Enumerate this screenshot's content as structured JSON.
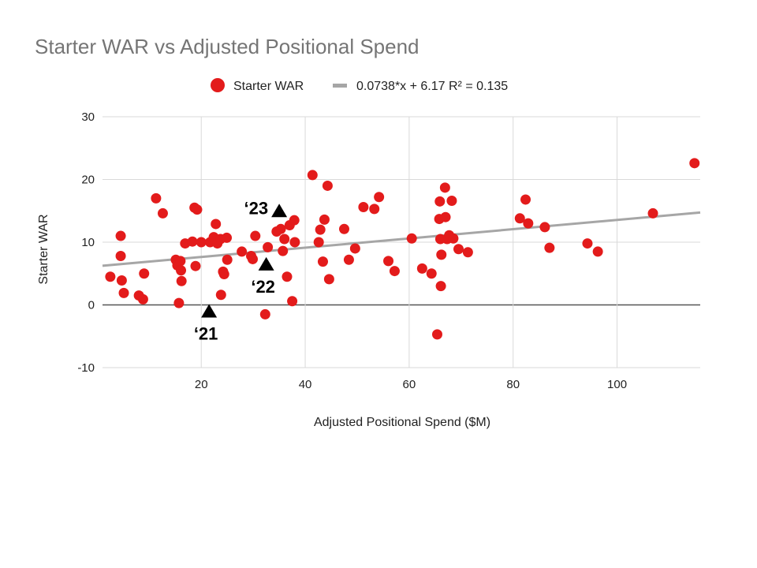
{
  "chart_data": {
    "type": "scatter",
    "title": "Starter WAR vs Adjusted Positional Spend",
    "xlabel": "Adjusted Positional Spend ($M)",
    "ylabel": "Starter WAR",
    "xlim": [
      1,
      116
    ],
    "ylim": [
      -10,
      30
    ],
    "xticks": [
      20,
      40,
      60,
      80,
      100
    ],
    "yticks": [
      -10,
      0,
      10,
      20,
      30
    ],
    "grid": true,
    "legend_position": "top",
    "series": [
      {
        "name": "Starter WAR",
        "color": "#e31b1b",
        "marker": "circle",
        "points": [
          [
            2.5,
            4.5
          ],
          [
            4.5,
            11
          ],
          [
            4.5,
            7.8
          ],
          [
            4.7,
            3.9
          ],
          [
            5.1,
            1.9
          ],
          [
            8,
            1.5
          ],
          [
            8.8,
            0.9
          ],
          [
            9,
            5
          ],
          [
            11.3,
            17
          ],
          [
            12.6,
            14.6
          ],
          [
            15.1,
            7.2
          ],
          [
            15.4,
            6.3
          ],
          [
            15.7,
            0.3
          ],
          [
            16,
            7
          ],
          [
            16.1,
            5.5
          ],
          [
            16.2,
            3.8
          ],
          [
            16.9,
            9.8
          ],
          [
            18.3,
            10.1
          ],
          [
            18.7,
            15.5
          ],
          [
            18.9,
            6.2
          ],
          [
            19.2,
            15.2
          ],
          [
            20,
            10
          ],
          [
            21.7,
            10
          ],
          [
            22.4,
            10.8
          ],
          [
            22.8,
            12.9
          ],
          [
            23.1,
            9.8
          ],
          [
            23.7,
            10.5
          ],
          [
            23.8,
            1.6
          ],
          [
            24.2,
            5.3
          ],
          [
            24.4,
            4.9
          ],
          [
            24.9,
            10.7
          ],
          [
            25,
            7.2
          ],
          [
            27.8,
            8.5
          ],
          [
            29.6,
            7.8
          ],
          [
            29.9,
            7.3
          ],
          [
            30.4,
            11
          ],
          [
            32.3,
            -1.5
          ],
          [
            32.8,
            9.2
          ],
          [
            34.5,
            11.7
          ],
          [
            35.3,
            12.1
          ],
          [
            35.7,
            8.6
          ],
          [
            36,
            10.5
          ],
          [
            36.5,
            4.5
          ],
          [
            37,
            12.7
          ],
          [
            37.5,
            0.6
          ],
          [
            37.9,
            13.5
          ],
          [
            38,
            10
          ],
          [
            41.4,
            20.7
          ],
          [
            42.6,
            10
          ],
          [
            42.9,
            12
          ],
          [
            43.4,
            6.9
          ],
          [
            43.7,
            13.6
          ],
          [
            44.3,
            19
          ],
          [
            44.6,
            4.1
          ],
          [
            47.5,
            12.1
          ],
          [
            48.4,
            7.2
          ],
          [
            49.6,
            9
          ],
          [
            51.2,
            15.6
          ],
          [
            53.3,
            15.3
          ],
          [
            54.2,
            17.2
          ],
          [
            56,
            7
          ],
          [
            57.2,
            5.4
          ],
          [
            60.5,
            10.6
          ],
          [
            62.5,
            5.8
          ],
          [
            64.3,
            5
          ],
          [
            65.4,
            -4.7
          ],
          [
            65.8,
            13.7
          ],
          [
            65.9,
            16.5
          ],
          [
            66,
            10.5
          ],
          [
            66.1,
            3
          ],
          [
            66.2,
            8
          ],
          [
            66.9,
            18.7
          ],
          [
            67,
            14
          ],
          [
            67.3,
            10.5
          ],
          [
            67.7,
            11.1
          ],
          [
            68.2,
            16.6
          ],
          [
            68.5,
            10.6
          ],
          [
            69.5,
            8.9
          ],
          [
            71.3,
            8.4
          ],
          [
            81.3,
            13.8
          ],
          [
            82.4,
            16.8
          ],
          [
            82.9,
            13
          ],
          [
            86.1,
            12.4
          ],
          [
            87,
            9.1
          ],
          [
            94.3,
            9.8
          ],
          [
            96.3,
            8.5
          ],
          [
            106.9,
            14.6
          ],
          [
            114.9,
            22.6
          ]
        ]
      }
    ],
    "trendline": {
      "name": "0.0738*x + 6.17 R² = 0.135",
      "slope": 0.0738,
      "intercept": 6.17,
      "color": "#a6a6a6"
    },
    "annotations": [
      {
        "label": "‘21",
        "x": 21.5,
        "y": -1
      },
      {
        "label": "‘22",
        "x": 32.5,
        "y": 6.5
      },
      {
        "label": "‘23",
        "x": 35,
        "y": 15
      }
    ]
  }
}
